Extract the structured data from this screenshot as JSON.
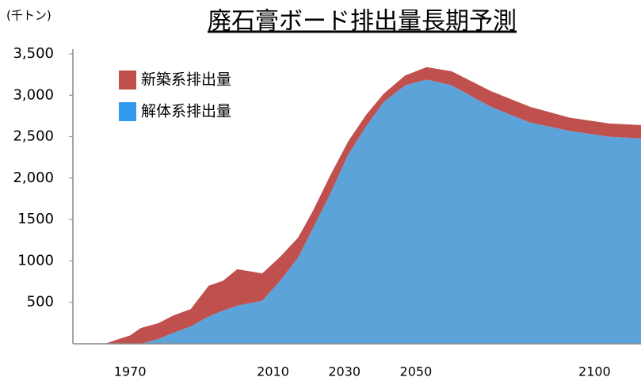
{
  "chart_data": {
    "type": "stacked_area",
    "title": "廃石膏ボード排出量長期予測",
    "y_label": "(千トン)",
    "x": [
      1963,
      1967,
      1970,
      1973,
      1978,
      1982,
      1987,
      1992,
      1996,
      2000,
      2007,
      2012,
      2017,
      2021,
      2026,
      2031,
      2036,
      2041,
      2047,
      2053,
      2060,
      2071,
      2082,
      2093,
      2104,
      2113
    ],
    "series": [
      {
        "name": "新築系排出量",
        "color": "#c0504d",
        "values": [
          0,
          60,
          100,
          190,
          190,
          210,
          210,
          370,
          360,
          440,
          330,
          290,
          240,
          210,
          220,
          160,
          140,
          100,
          120,
          150,
          170,
          190,
          190,
          160,
          160,
          160
        ]
      },
      {
        "name": "解体系排出量",
        "color": "#5ba3d9",
        "values": [
          0,
          0,
          0,
          0,
          60,
          130,
          210,
          330,
          400,
          460,
          520,
          760,
          1040,
          1380,
          1810,
          2280,
          2620,
          2920,
          3120,
          3190,
          3120,
          2860,
          2670,
          2570,
          2500,
          2480
        ]
      }
    ],
    "xlim": [
      1954,
      2113
    ],
    "xticks": [
      1970,
      2010,
      2030,
      2050,
      2100
    ],
    "ylim": [
      0,
      3500
    ],
    "yticks": [
      {
        "value": 3500,
        "label": "3,500"
      },
      {
        "value": 3000,
        "label": "3,000"
      },
      {
        "value": 2500,
        "label": "2,500"
      },
      {
        "value": 2000,
        "label": "2,000"
      },
      1500,
      1000,
      500
    ],
    "legend": "upper left",
    "grid": false
  }
}
